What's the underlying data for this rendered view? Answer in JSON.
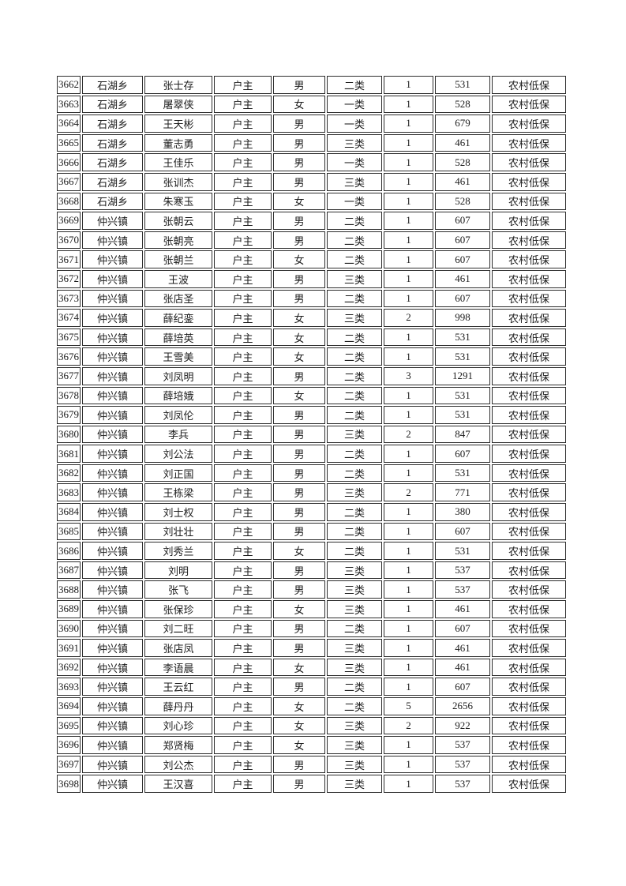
{
  "page": {
    "background": "#ffffff"
  },
  "colors": {
    "border": "#2e2e2e",
    "text": "#1c1c1c",
    "page_bg": "#ffffff"
  },
  "table": {
    "column_keys": [
      "id",
      "township",
      "name",
      "relation",
      "gender",
      "category",
      "count",
      "amount",
      "type"
    ],
    "rows": [
      [
        "3662",
        "石湖乡",
        "张士存",
        "户主",
        "男",
        "二类",
        "1",
        "531",
        "农村低保"
      ],
      [
        "3663",
        "石湖乡",
        "屠翠侠",
        "户主",
        "女",
        "一类",
        "1",
        "528",
        "农村低保"
      ],
      [
        "3664",
        "石湖乡",
        "王天彬",
        "户主",
        "男",
        "一类",
        "1",
        "679",
        "农村低保"
      ],
      [
        "3665",
        "石湖乡",
        "董志勇",
        "户主",
        "男",
        "三类",
        "1",
        "461",
        "农村低保"
      ],
      [
        "3666",
        "石湖乡",
        "王佳乐",
        "户主",
        "男",
        "一类",
        "1",
        "528",
        "农村低保"
      ],
      [
        "3667",
        "石湖乡",
        "张训杰",
        "户主",
        "男",
        "三类",
        "1",
        "461",
        "农村低保"
      ],
      [
        "3668",
        "石湖乡",
        "朱寒玉",
        "户主",
        "女",
        "一类",
        "1",
        "528",
        "农村低保"
      ],
      [
        "3669",
        "仲兴镇",
        "张朝云",
        "户主",
        "男",
        "二类",
        "1",
        "607",
        "农村低保"
      ],
      [
        "3670",
        "仲兴镇",
        "张朝亮",
        "户主",
        "男",
        "二类",
        "1",
        "607",
        "农村低保"
      ],
      [
        "3671",
        "仲兴镇",
        "张朝兰",
        "户主",
        "女",
        "二类",
        "1",
        "607",
        "农村低保"
      ],
      [
        "3672",
        "仲兴镇",
        "王波",
        "户主",
        "男",
        "三类",
        "1",
        "461",
        "农村低保"
      ],
      [
        "3673",
        "仲兴镇",
        "张店圣",
        "户主",
        "男",
        "二类",
        "1",
        "607",
        "农村低保"
      ],
      [
        "3674",
        "仲兴镇",
        "薛纪銮",
        "户主",
        "女",
        "三类",
        "2",
        "998",
        "农村低保"
      ],
      [
        "3675",
        "仲兴镇",
        "薛培英",
        "户主",
        "女",
        "二类",
        "1",
        "531",
        "农村低保"
      ],
      [
        "3676",
        "仲兴镇",
        "王雪美",
        "户主",
        "女",
        "二类",
        "1",
        "531",
        "农村低保"
      ],
      [
        "3677",
        "仲兴镇",
        "刘凤明",
        "户主",
        "男",
        "二类",
        "3",
        "1291",
        "农村低保"
      ],
      [
        "3678",
        "仲兴镇",
        "薛培娥",
        "户主",
        "女",
        "二类",
        "1",
        "531",
        "农村低保"
      ],
      [
        "3679",
        "仲兴镇",
        "刘凤伦",
        "户主",
        "男",
        "二类",
        "1",
        "531",
        "农村低保"
      ],
      [
        "3680",
        "仲兴镇",
        "李兵",
        "户主",
        "男",
        "三类",
        "2",
        "847",
        "农村低保"
      ],
      [
        "3681",
        "仲兴镇",
        "刘公法",
        "户主",
        "男",
        "二类",
        "1",
        "607",
        "农村低保"
      ],
      [
        "3682",
        "仲兴镇",
        "刘正国",
        "户主",
        "男",
        "二类",
        "1",
        "531",
        "农村低保"
      ],
      [
        "3683",
        "仲兴镇",
        "王栋梁",
        "户主",
        "男",
        "三类",
        "2",
        "771",
        "农村低保"
      ],
      [
        "3684",
        "仲兴镇",
        "刘士权",
        "户主",
        "男",
        "二类",
        "1",
        "380",
        "农村低保"
      ],
      [
        "3685",
        "仲兴镇",
        "刘壮壮",
        "户主",
        "男",
        "二类",
        "1",
        "607",
        "农村低保"
      ],
      [
        "3686",
        "仲兴镇",
        "刘秀兰",
        "户主",
        "女",
        "二类",
        "1",
        "531",
        "农村低保"
      ],
      [
        "3687",
        "仲兴镇",
        "刘明",
        "户主",
        "男",
        "三类",
        "1",
        "537",
        "农村低保"
      ],
      [
        "3688",
        "仲兴镇",
        "张飞",
        "户主",
        "男",
        "三类",
        "1",
        "537",
        "农村低保"
      ],
      [
        "3689",
        "仲兴镇",
        "张保珍",
        "户主",
        "女",
        "三类",
        "1",
        "461",
        "农村低保"
      ],
      [
        "3690",
        "仲兴镇",
        "刘二旺",
        "户主",
        "男",
        "二类",
        "1",
        "607",
        "农村低保"
      ],
      [
        "3691",
        "仲兴镇",
        "张店凤",
        "户主",
        "男",
        "三类",
        "1",
        "461",
        "农村低保"
      ],
      [
        "3692",
        "仲兴镇",
        "李语晨",
        "户主",
        "女",
        "三类",
        "1",
        "461",
        "农村低保"
      ],
      [
        "3693",
        "仲兴镇",
        "王云红",
        "户主",
        "男",
        "二类",
        "1",
        "607",
        "农村低保"
      ],
      [
        "3694",
        "仲兴镇",
        "薛丹丹",
        "户主",
        "女",
        "二类",
        "5",
        "2656",
        "农村低保"
      ],
      [
        "3695",
        "仲兴镇",
        "刘心珍",
        "户主",
        "女",
        "三类",
        "2",
        "922",
        "农村低保"
      ],
      [
        "3696",
        "仲兴镇",
        "郑贤梅",
        "户主",
        "女",
        "三类",
        "1",
        "537",
        "农村低保"
      ],
      [
        "3697",
        "仲兴镇",
        "刘公杰",
        "户主",
        "男",
        "三类",
        "1",
        "537",
        "农村低保"
      ],
      [
        "3698",
        "仲兴镇",
        "王汉喜",
        "户主",
        "男",
        "三类",
        "1",
        "537",
        "农村低保"
      ]
    ]
  }
}
